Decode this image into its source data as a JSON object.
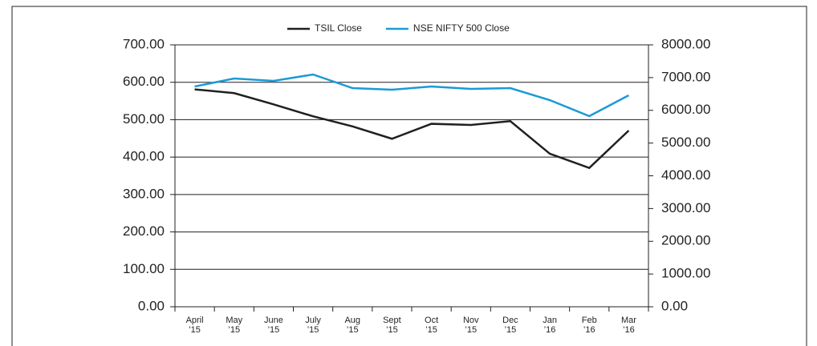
{
  "chart_data": {
    "type": "line",
    "categories": [
      [
        "April",
        "’15"
      ],
      [
        "May",
        "’15"
      ],
      [
        "June",
        "’15"
      ],
      [
        "July",
        "’15"
      ],
      [
        "Aug",
        "’15"
      ],
      [
        "Sept",
        "’15"
      ],
      [
        "Oct",
        "’15"
      ],
      [
        "Nov",
        "’15"
      ],
      [
        "Dec",
        "’15"
      ],
      [
        "Jan",
        "’16"
      ],
      [
        "Feb",
        "’16"
      ],
      [
        "Mar",
        "’16"
      ]
    ],
    "series": [
      {
        "name": "TSIL Close",
        "color": "#231f20",
        "values": [
          581,
          571,
          541,
          509,
          482,
          449,
          489,
          486,
          496,
          409,
          371,
          471
        ]
      },
      {
        "name": "NSE NIFTY 500 Close",
        "color": "#1b9ad6",
        "axis": "y2",
        "values": [
          6728,
          6972,
          6899,
          7095,
          6679,
          6630,
          6728,
          6654,
          6679,
          6312,
          5823,
          6459
        ]
      }
    ],
    "ylim": [
      0,
      700
    ],
    "yticks": [
      {
        "value": 0,
        "label": "0.00"
      },
      {
        "value": 100,
        "label": "100.00"
      },
      {
        "value": 200,
        "label": "200.00"
      },
      {
        "value": 300,
        "label": "300.00"
      },
      {
        "value": 400,
        "label": "400.00"
      },
      {
        "value": 500,
        "label": "500.00"
      },
      {
        "value": 600,
        "label": "600.00"
      },
      {
        "value": 700,
        "label": "700.00"
      }
    ],
    "y2lim": [
      0,
      8000
    ],
    "y2ticks": [
      {
        "value": 0,
        "label": "0.00"
      },
      {
        "value": 1000,
        "label": "1000.00"
      },
      {
        "value": 2000,
        "label": "2000.00"
      },
      {
        "value": 3000,
        "label": "3000.00"
      },
      {
        "value": 4000,
        "label": "4000.00"
      },
      {
        "value": 5000,
        "label": "5000.00"
      },
      {
        "value": 6000,
        "label": "6000.00"
      },
      {
        "value": 7000,
        "label": "7000.00"
      },
      {
        "value": 8000,
        "label": "8000.00"
      }
    ],
    "grid": true,
    "legend": "top"
  }
}
